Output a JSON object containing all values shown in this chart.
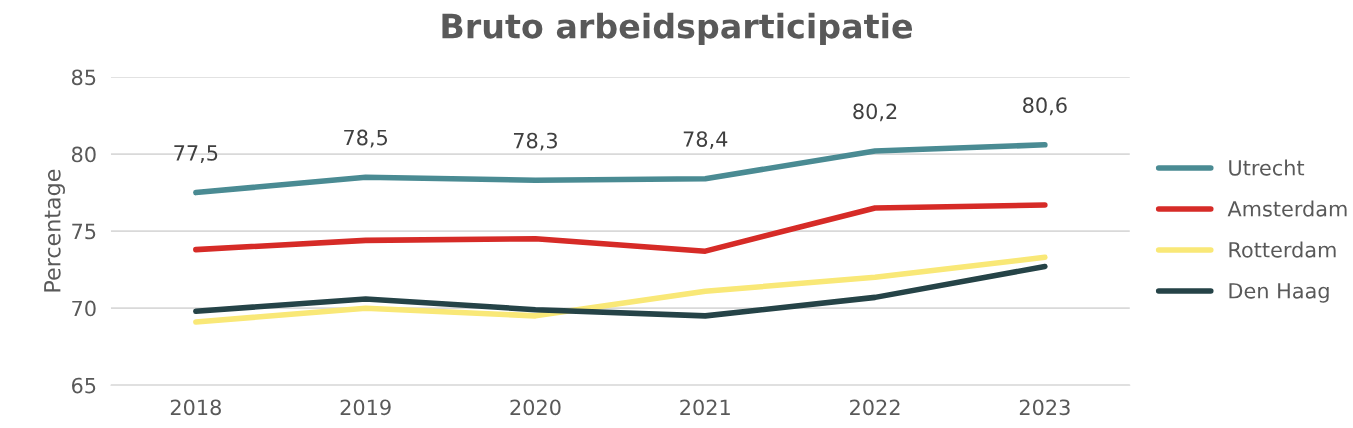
{
  "chart_data": {
    "type": "line",
    "title": "Bruto arbeidsparticipatie",
    "ylabel": "Percentage",
    "categories": [
      "2018",
      "2019",
      "2020",
      "2021",
      "2022",
      "2023"
    ],
    "series": [
      {
        "name": "Utrecht",
        "color": "#4a8b93",
        "values": [
          77.5,
          78.5,
          78.3,
          78.4,
          80.2,
          80.6
        ],
        "value_labels": [
          "77,5",
          "78,5",
          "78,3",
          "78,4",
          "80,2",
          "80,6"
        ]
      },
      {
        "name": "Amsterdam",
        "color": "#d62b27",
        "values": [
          73.8,
          74.4,
          74.5,
          73.7,
          76.5,
          76.7
        ]
      },
      {
        "name": "Rotterdam",
        "color": "#f9e877",
        "values": [
          69.1,
          70.0,
          69.5,
          71.1,
          72.0,
          73.3
        ]
      },
      {
        "name": "Den Haag",
        "color": "#254347",
        "values": [
          69.8,
          70.6,
          69.9,
          69.5,
          70.7,
          72.7
        ]
      }
    ],
    "ylim": [
      65,
      85
    ],
    "yticks": [
      65,
      70,
      75,
      80,
      85
    ],
    "grid": "y",
    "legend": "right",
    "marker": "none",
    "line_style": "solid"
  }
}
